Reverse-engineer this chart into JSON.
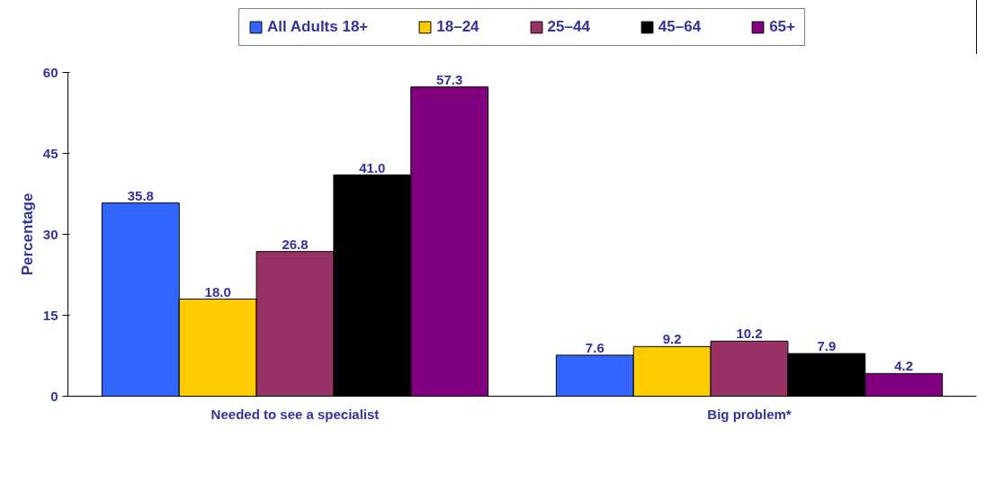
{
  "chart_data": {
    "type": "bar",
    "ylabel": "Percentage",
    "categories": [
      "Needed to see a specialist",
      "Big problem*"
    ],
    "series": [
      {
        "name": "All Adults 18+",
        "color": "#3366ff",
        "values": [
          35.8,
          7.6
        ],
        "value_labels": [
          "35.8",
          "7.6"
        ]
      },
      {
        "name": "18–24",
        "color": "#ffcc00",
        "values": [
          18.0,
          9.2
        ],
        "value_labels": [
          "18.0",
          "9.2"
        ]
      },
      {
        "name": "25–44",
        "color": "#993366",
        "values": [
          26.8,
          10.2
        ],
        "value_labels": [
          "26.8",
          "10.2"
        ]
      },
      {
        "name": "45–64",
        "color": "#000000",
        "values": [
          41.0,
          7.9
        ],
        "value_labels": [
          "41.0",
          "7.9"
        ]
      },
      {
        "name": "65+",
        "color": "#800080",
        "values": [
          57.3,
          4.2
        ],
        "value_labels": [
          "57.3",
          "4.2"
        ]
      }
    ],
    "ylim": [
      0,
      60
    ],
    "yticks": [
      0,
      15,
      30,
      45,
      60
    ],
    "grid": false,
    "legend": "top"
  }
}
